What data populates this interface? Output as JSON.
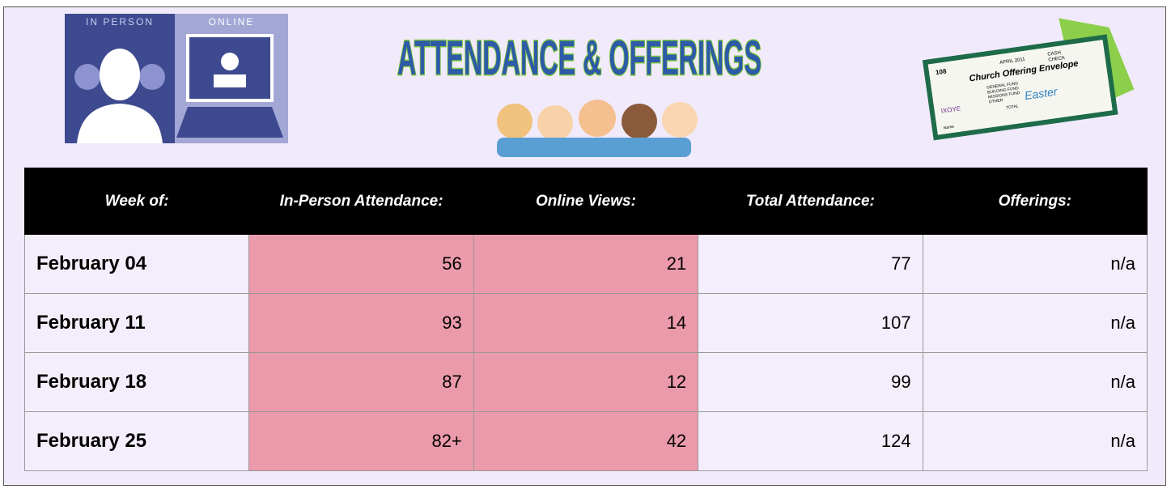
{
  "header": {
    "left_icon": {
      "labels": [
        "IN PERSON",
        "ONLINE"
      ]
    },
    "title": "ATTENDANCE & OFFERINGS",
    "envelope": {
      "number": "108",
      "date": "APRIL 2011",
      "cash": "CASH",
      "check": "CHECK",
      "heading": "Church Offering Envelope",
      "symbol": "IXOYE",
      "lines": [
        "GENERAL FUND",
        "BUILDING FUND",
        "MISSIONS FUND",
        "OTHER",
        "TOTAL"
      ],
      "word": "Easter",
      "name": "Name"
    }
  },
  "table": {
    "columns": [
      "Week of:",
      "In-Person Attendance:",
      "Online Views:",
      "Total Attendance:",
      "Offerings:"
    ],
    "rows": [
      [
        "February 04",
        56,
        21,
        77,
        "n/a"
      ],
      [
        "February 11",
        93,
        14,
        107,
        "n/a"
      ],
      [
        "February 18",
        87,
        12,
        99,
        "n/a"
      ],
      [
        "February 25",
        "82+",
        42,
        124,
        "n/a"
      ]
    ]
  }
}
